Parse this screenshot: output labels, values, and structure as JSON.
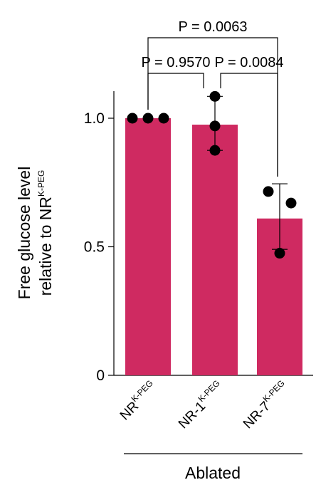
{
  "chart_data": {
    "type": "bar",
    "categories": [
      {
        "base": "NR",
        "sup": "K-PEG"
      },
      {
        "base": "NR-1",
        "sup": "K-PEG"
      },
      {
        "base": "NR-7",
        "sup": "K-PEG"
      }
    ],
    "values": [
      1.0,
      0.975,
      0.61
    ],
    "error": [
      {
        "low": 1.0,
        "high": 1.0
      },
      {
        "low": 0.875,
        "high": 1.085
      },
      {
        "low": 0.49,
        "high": 0.745
      }
    ],
    "points": [
      [
        1.0,
        1.0,
        1.0
      ],
      [
        1.085,
        0.97,
        0.875
      ],
      [
        0.715,
        0.67,
        0.475
      ]
    ],
    "ylim": [
      0,
      1.0
    ],
    "yticks": [
      "0",
      "0.5",
      "1.0"
    ],
    "ylabel_line1": "Free glucose level",
    "ylabel_line2": "relative to NR",
    "ylabel_sup": "K-PEG",
    "group_label": "Ablated",
    "comparisons": [
      {
        "from": 0,
        "to": 1,
        "label": "P = 0.9570"
      },
      {
        "from": 1,
        "to": 2,
        "label": "P = 0.0084"
      },
      {
        "from": 0,
        "to": 2,
        "label": "P = 0.0063"
      }
    ],
    "colors": {
      "bar": "#cf2a61",
      "point": "#000000"
    },
    "grid": false,
    "legend": "none"
  }
}
